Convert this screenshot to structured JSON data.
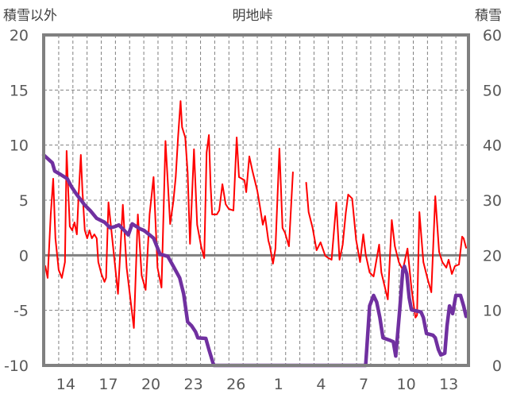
{
  "chart_data": {
    "type": "line",
    "title": "明地峠",
    "ylabel_left": "積雪以外",
    "ylabel_right": "積雪",
    "ylim_left": [
      -10,
      20
    ],
    "yticks_left": [
      "20",
      "15",
      "10",
      "5",
      "0",
      "-5",
      "-10"
    ],
    "ylim_right": [
      0,
      60
    ],
    "yticks_right": [
      "60",
      "50",
      "40",
      "30",
      "20",
      "10",
      "0"
    ],
    "xlim": [
      12.44,
      42.39
    ],
    "xticks": [
      {
        "d": 14,
        "label": "14"
      },
      {
        "d": 17,
        "label": "17"
      },
      {
        "d": 20,
        "label": "20"
      },
      {
        "d": 23,
        "label": "23"
      },
      {
        "d": 26,
        "label": "26"
      },
      {
        "d": 29,
        "label": "1"
      },
      {
        "d": 32,
        "label": "4"
      },
      {
        "d": 35,
        "label": "7"
      },
      {
        "d": 38,
        "label": "10"
      },
      {
        "d": 41,
        "label": "13"
      }
    ],
    "grid": true,
    "colors": {
      "left_series": "#ff0000",
      "right_series": "#7030a0",
      "frame": "#808080",
      "grid": "#808080"
    },
    "series": [
      {
        "name": "積雪以外",
        "axis": "left",
        "points": [
          [
            12.55,
            -0.98
          ],
          [
            12.72,
            -2.05
          ],
          [
            12.94,
            3.71
          ],
          [
            13.11,
            6.95
          ],
          [
            13.27,
            1.54
          ],
          [
            13.5,
            -1.33
          ],
          [
            13.72,
            -2.05
          ],
          [
            13.94,
            -0.62
          ],
          [
            14.06,
            9.47
          ],
          [
            14.17,
            5.87
          ],
          [
            14.28,
            2.62
          ],
          [
            14.45,
            2.27
          ],
          [
            14.61,
            2.98
          ],
          [
            14.78,
            1.9
          ],
          [
            14.89,
            5.15
          ],
          [
            15.06,
            9.11
          ],
          [
            15.17,
            5.87
          ],
          [
            15.34,
            2.27
          ],
          [
            15.51,
            1.54
          ],
          [
            15.67,
            2.27
          ],
          [
            15.84,
            1.54
          ],
          [
            16.01,
            1.9
          ],
          [
            16.18,
            1.54
          ],
          [
            16.29,
            -0.62
          ],
          [
            16.51,
            -1.7
          ],
          [
            16.73,
            -2.41
          ],
          [
            16.84,
            -2.05
          ],
          [
            17.01,
            4.8
          ],
          [
            17.68,
            -3.5
          ],
          [
            18.02,
            4.58
          ],
          [
            18.29,
            -1.12
          ],
          [
            18.8,
            -6.6
          ],
          [
            19.08,
            3.71
          ],
          [
            19.35,
            -1.84
          ],
          [
            19.63,
            -3.14
          ],
          [
            19.91,
            3.71
          ],
          [
            20.19,
            7.1
          ],
          [
            20.47,
            -1.12
          ],
          [
            20.75,
            -2.93
          ],
          [
            21.03,
            10.37
          ],
          [
            21.36,
            2.84
          ],
          [
            21.59,
            4.93
          ],
          [
            21.75,
            7.1
          ],
          [
            21.92,
            10.78
          ],
          [
            22.09,
            14.0
          ],
          [
            22.2,
            11.63
          ],
          [
            22.42,
            10.7
          ],
          [
            22.59,
            7.53
          ],
          [
            22.76,
            1.04
          ],
          [
            23.04,
            9.62
          ],
          [
            23.26,
            2.77
          ],
          [
            23.54,
            0.82
          ],
          [
            23.76,
            -0.26
          ],
          [
            23.93,
            9.33
          ],
          [
            24.09,
            10.91
          ],
          [
            24.21,
            6.37
          ],
          [
            24.32,
            3.71
          ],
          [
            24.65,
            3.71
          ],
          [
            24.82,
            4.07
          ],
          [
            25.04,
            6.45
          ],
          [
            25.27,
            4.64
          ],
          [
            25.49,
            4.21
          ],
          [
            25.82,
            4.07
          ],
          [
            26.05,
            10.7
          ],
          [
            26.21,
            7.1
          ],
          [
            26.6,
            6.81
          ],
          [
            26.72,
            5.73
          ],
          [
            26.94,
            8.97
          ],
          [
            27.16,
            7.67
          ],
          [
            27.5,
            5.87
          ],
          [
            27.66,
            4.64
          ],
          [
            27.89,
            2.77
          ],
          [
            28.05,
            3.56
          ],
          [
            28.28,
            1.33
          ],
          [
            28.39,
            0.82
          ],
          [
            28.61,
            -0.76
          ],
          [
            28.78,
            0.61
          ],
          [
            29.06,
            9.69
          ],
          [
            29.28,
            2.48
          ],
          [
            29.45,
            2.05
          ],
          [
            29.73,
            0.82
          ],
          [
            30.01,
            7.53
          ],
          null,
          [
            30.95,
            6.59
          ],
          [
            31.12,
            3.92
          ],
          [
            31.4,
            2.48
          ],
          [
            31.68,
            0.46
          ],
          [
            31.96,
            1.18
          ],
          [
            32.29,
            -0.04
          ],
          [
            32.52,
            -0.26
          ],
          [
            32.74,
            -0.4
          ],
          [
            33.02,
            3.92
          ],
          [
            33.07,
            4.79
          ],
          [
            33.3,
            -0.4
          ],
          [
            33.52,
            0.97
          ],
          [
            33.74,
            3.85
          ],
          [
            33.91,
            5.51
          ],
          [
            34.19,
            5.15
          ],
          [
            34.47,
            1.4
          ],
          [
            34.75,
            -0.62
          ],
          [
            34.97,
            1.9
          ],
          [
            35.14,
            0.1
          ],
          [
            35.42,
            -1.56
          ],
          [
            35.7,
            -1.92
          ],
          [
            36.09,
            0.97
          ],
          [
            36.25,
            -1.56
          ],
          [
            36.7,
            -4.01
          ],
          [
            36.98,
            3.2
          ],
          [
            37.2,
            0.82
          ],
          [
            37.48,
            -0.62
          ],
          [
            37.76,
            -1.34
          ],
          [
            38.09,
            0.61
          ],
          [
            38.37,
            -2.99
          ],
          [
            38.65,
            -5.66
          ],
          [
            38.76,
            -5.45
          ],
          [
            38.93,
            3.92
          ],
          [
            39.21,
            -0.62
          ],
          [
            39.49,
            -2.06
          ],
          [
            39.77,
            -3.36
          ],
          [
            40.05,
            5.36
          ],
          [
            40.32,
            0.32
          ],
          [
            40.55,
            -0.62
          ],
          [
            40.83,
            -1.12
          ],
          [
            40.99,
            -0.4
          ],
          [
            41.22,
            -1.7
          ],
          [
            41.44,
            -0.98
          ],
          [
            41.72,
            -0.84
          ],
          [
            41.94,
            1.69
          ],
          [
            42.05,
            1.54
          ],
          [
            42.22,
            0.68
          ]
        ]
      },
      {
        "name": "積雪",
        "axis": "right",
        "points": [
          [
            12.44,
            38.2
          ],
          [
            13.05,
            36.8
          ],
          [
            13.22,
            35.3
          ],
          [
            13.67,
            34.6
          ],
          [
            14.11,
            33.9
          ],
          [
            14.39,
            32.5
          ],
          [
            14.78,
            31.0
          ],
          [
            15.34,
            29.1
          ],
          [
            15.73,
            28.1
          ],
          [
            16.18,
            26.7
          ],
          [
            16.73,
            26.0
          ],
          [
            17.12,
            25.0
          ],
          [
            17.46,
            25.2
          ],
          [
            17.74,
            25.5
          ],
          [
            18.13,
            24.5
          ],
          [
            18.41,
            23.7
          ],
          [
            18.68,
            25.7
          ],
          [
            19.24,
            24.8
          ],
          [
            19.52,
            24.5
          ],
          [
            20.19,
            23.1
          ],
          [
            20.64,
            20.2
          ],
          [
            21.19,
            19.8
          ],
          [
            21.58,
            18.0
          ],
          [
            22.03,
            15.9
          ],
          [
            22.31,
            13.0
          ],
          [
            22.59,
            7.9
          ],
          [
            22.87,
            7.2
          ],
          [
            23.15,
            6.1
          ],
          [
            23.31,
            5.0
          ],
          [
            23.87,
            4.9
          ],
          [
            24.09,
            2.9
          ],
          [
            24.43,
            0
          ],
          [
            35.14,
            0
          ],
          [
            35.25,
            4.3
          ],
          [
            35.42,
            10.8
          ],
          [
            35.7,
            12.7
          ],
          [
            35.92,
            11.5
          ],
          [
            36.14,
            8.7
          ],
          [
            36.36,
            5.0
          ],
          [
            36.81,
            4.6
          ],
          [
            37.09,
            4.3
          ],
          [
            37.26,
            1.7
          ],
          [
            37.54,
            10.1
          ],
          [
            37.76,
            17.3
          ],
          [
            37.87,
            18.0
          ],
          [
            38.04,
            16.6
          ],
          [
            38.21,
            12.3
          ],
          [
            38.37,
            10.1
          ],
          [
            39.04,
            9.7
          ],
          [
            39.21,
            8.7
          ],
          [
            39.43,
            5.8
          ],
          [
            39.88,
            5.5
          ],
          [
            40.05,
            5.0
          ],
          [
            40.27,
            2.9
          ],
          [
            40.44,
            1.9
          ],
          [
            40.72,
            2.2
          ],
          [
            40.88,
            7.2
          ],
          [
            41.05,
            10.8
          ],
          [
            41.27,
            9.4
          ],
          [
            41.5,
            12.7
          ],
          [
            41.83,
            12.7
          ],
          [
            42.05,
            10.8
          ],
          [
            42.22,
            8.9
          ]
        ]
      }
    ]
  }
}
